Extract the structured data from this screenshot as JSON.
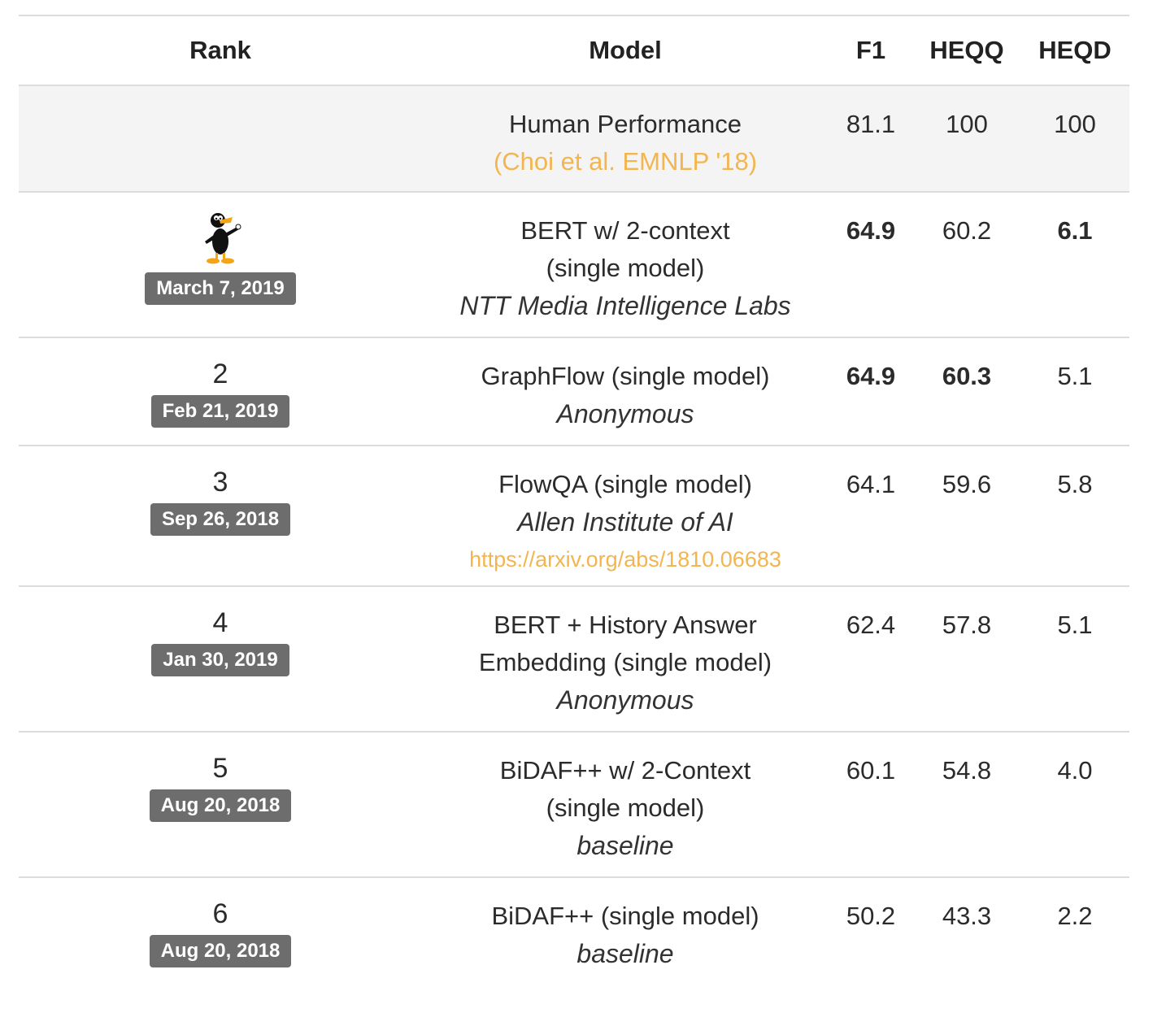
{
  "columns": {
    "rank": "Rank",
    "model": "Model",
    "f1": "F1",
    "heqq": "HEQQ",
    "heqd": "HEQD"
  },
  "human": {
    "model": "Human Performance",
    "citation": "(Choi et al. EMNLP '18)",
    "f1": "81.1",
    "heqq": "100",
    "heqd": "100"
  },
  "rows": [
    {
      "rank_icon": "daffy-duck-icon",
      "date": "March 7, 2019",
      "model_line1": "BERT w/ 2-context",
      "model_line2": "(single model)",
      "org": "NTT Media Intelligence Labs",
      "f1": "64.9",
      "heqq": "60.2",
      "heqd": "6.1",
      "bold": [
        "f1",
        "heqd"
      ]
    },
    {
      "rank": "2",
      "date": "Feb 21, 2019",
      "model_line1": "GraphFlow (single model)",
      "org": "Anonymous",
      "f1": "64.9",
      "heqq": "60.3",
      "heqd": "5.1",
      "bold": [
        "f1",
        "heqq"
      ]
    },
    {
      "rank": "3",
      "date": "Sep 26, 2018",
      "model_line1": "FlowQA (single model)",
      "org": "Allen Institute of AI",
      "link": "https://arxiv.org/abs/1810.06683",
      "f1": "64.1",
      "heqq": "59.6",
      "heqd": "5.8"
    },
    {
      "rank": "4",
      "date": "Jan 30, 2019",
      "model_line1": "BERT + History Answer",
      "model_line2": "Embedding (single model)",
      "org": "Anonymous",
      "f1": "62.4",
      "heqq": "57.8",
      "heqd": "5.1"
    },
    {
      "rank": "5",
      "date": "Aug 20, 2018",
      "model_line1": "BiDAF++ w/ 2-Context",
      "model_line2": "(single model)",
      "org": "baseline",
      "f1": "60.1",
      "heqq": "54.8",
      "heqd": "4.0"
    },
    {
      "rank": "6",
      "date": "Aug 20, 2018",
      "model_line1": "BiDAF++ (single model)",
      "org": "baseline",
      "f1": "50.2",
      "heqq": "43.3",
      "heqd": "2.2"
    }
  ],
  "colors": {
    "link": "#f2b550",
    "badge": "#6d6d6d",
    "human_row_bg": "#f4f4f4",
    "divider": "#dcdcdc"
  }
}
